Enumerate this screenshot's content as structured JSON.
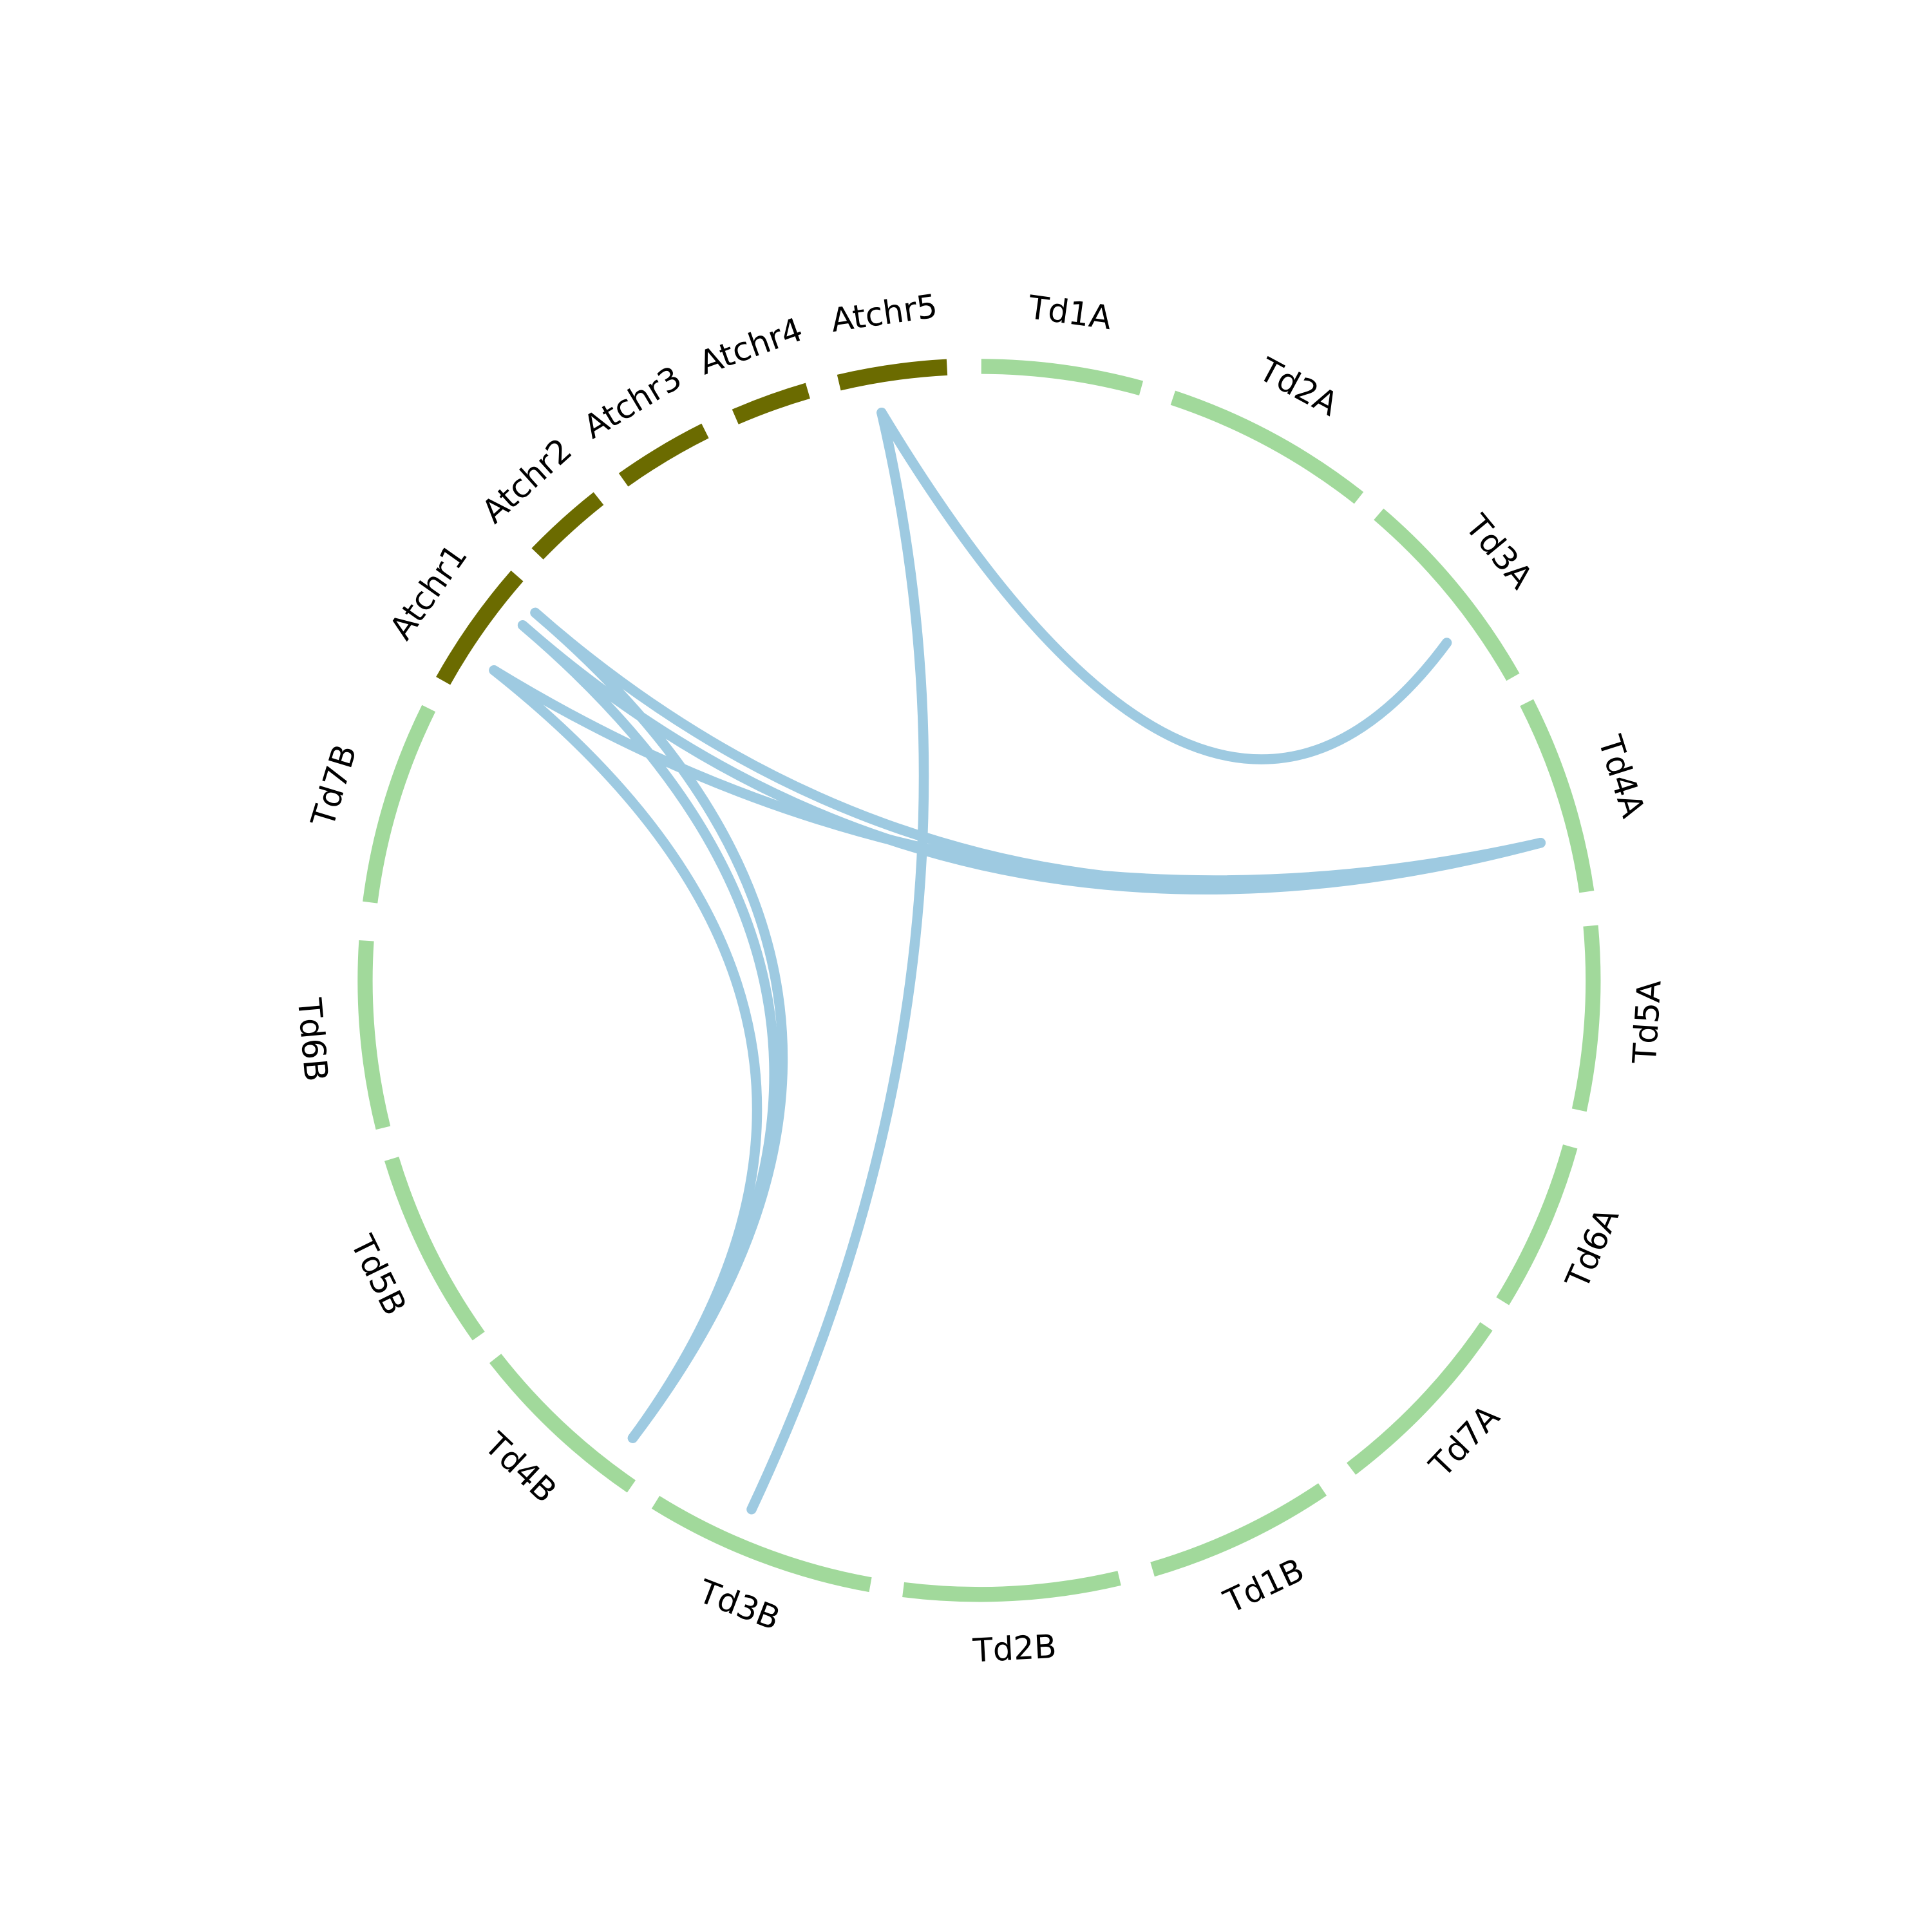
{
  "segments": [
    {
      "label": "Atchr1",
      "color": "#6b6b00"
    },
    {
      "label": "Atchr2",
      "color": "#6b6b00"
    },
    {
      "label": "Atchr3",
      "color": "#6b6b00"
    },
    {
      "label": "Atchr4",
      "color": "#6b6b00"
    },
    {
      "label": "Atchr5",
      "color": "#6b6b00"
    },
    {
      "label": "Td1A",
      "color": "#a1d99b"
    },
    {
      "label": "Td2A",
      "color": "#a1d99b"
    },
    {
      "label": "Td3A",
      "color": "#a1d99b"
    },
    {
      "label": "Td4A",
      "color": "#a1d99b"
    },
    {
      "label": "Td5A",
      "color": "#a1d99b"
    },
    {
      "label": "Td6A",
      "color": "#a1d99b"
    },
    {
      "label": "Td7A",
      "color": "#a1d99b"
    },
    {
      "label": "Td1B",
      "color": "#a1d99b"
    },
    {
      "label": "Td2B",
      "color": "#a1d99b"
    },
    {
      "label": "Td3B",
      "color": "#a1d99b"
    },
    {
      "label": "Td4B",
      "color": "#a1d99b"
    },
    {
      "label": "Td5B",
      "color": "#a1d99b"
    },
    {
      "label": "Td6B",
      "color": "#a1d99b"
    },
    {
      "label": "Td7B",
      "color": "#a1d99b"
    }
  ]
}
